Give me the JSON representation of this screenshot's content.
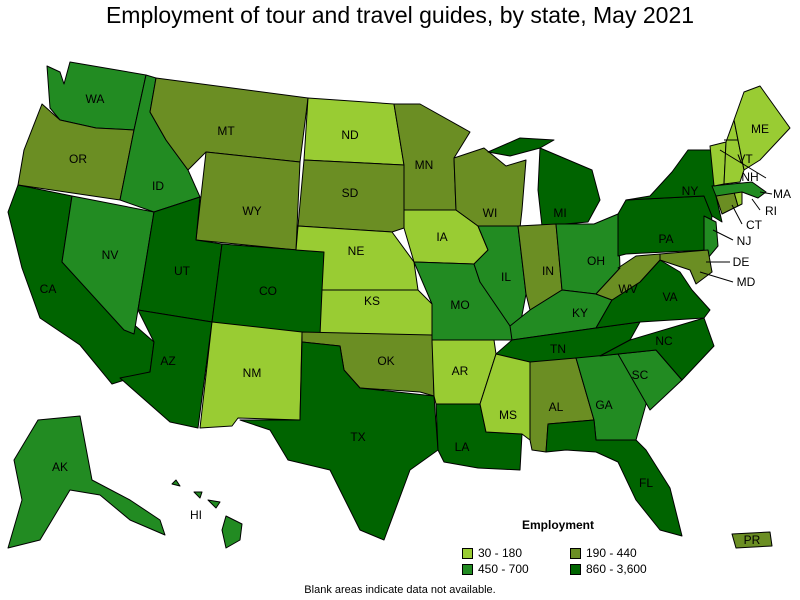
{
  "title": "Employment of tour and travel guides, by state, May 2021",
  "note": "Blank areas indicate data not available.",
  "legend": {
    "title": "Employment",
    "bins": [
      {
        "label": "30 - 180",
        "color": "#99cc33"
      },
      {
        "label": "190 - 440",
        "color": "#6b8e23"
      },
      {
        "label": "450 - 700",
        "color": "#228b22"
      },
      {
        "label": "860 - 3,600",
        "color": "#006400"
      }
    ]
  },
  "states": [
    {
      "abbr": "WA",
      "bin": 2
    },
    {
      "abbr": "OR",
      "bin": 1
    },
    {
      "abbr": "CA",
      "bin": 3
    },
    {
      "abbr": "NV",
      "bin": 2
    },
    {
      "abbr": "ID",
      "bin": 2
    },
    {
      "abbr": "MT",
      "bin": 1
    },
    {
      "abbr": "WY",
      "bin": 1
    },
    {
      "abbr": "UT",
      "bin": 3
    },
    {
      "abbr": "AZ",
      "bin": 3
    },
    {
      "abbr": "CO",
      "bin": 3
    },
    {
      "abbr": "NM",
      "bin": 0
    },
    {
      "abbr": "ND",
      "bin": 0
    },
    {
      "abbr": "SD",
      "bin": 1
    },
    {
      "abbr": "NE",
      "bin": 0
    },
    {
      "abbr": "KS",
      "bin": 0
    },
    {
      "abbr": "OK",
      "bin": 1
    },
    {
      "abbr": "TX",
      "bin": 3
    },
    {
      "abbr": "MN",
      "bin": 1
    },
    {
      "abbr": "IA",
      "bin": 0
    },
    {
      "abbr": "MO",
      "bin": 2
    },
    {
      "abbr": "AR",
      "bin": 0
    },
    {
      "abbr": "LA",
      "bin": 3
    },
    {
      "abbr": "WI",
      "bin": 1
    },
    {
      "abbr": "IL",
      "bin": 2
    },
    {
      "abbr": "MI",
      "bin": 3
    },
    {
      "abbr": "IN",
      "bin": 1
    },
    {
      "abbr": "OH",
      "bin": 2
    },
    {
      "abbr": "KY",
      "bin": 2
    },
    {
      "abbr": "TN",
      "bin": 3
    },
    {
      "abbr": "MS",
      "bin": 0
    },
    {
      "abbr": "AL",
      "bin": 1
    },
    {
      "abbr": "GA",
      "bin": 2
    },
    {
      "abbr": "FL",
      "bin": 3
    },
    {
      "abbr": "SC",
      "bin": 2
    },
    {
      "abbr": "NC",
      "bin": 3
    },
    {
      "abbr": "VA",
      "bin": 3
    },
    {
      "abbr": "WV",
      "bin": 1
    },
    {
      "abbr": "PA",
      "bin": 3
    },
    {
      "abbr": "NY",
      "bin": 3
    },
    {
      "abbr": "NJ",
      "bin": 2
    },
    {
      "abbr": "DE",
      "bin": 1
    },
    {
      "abbr": "MD",
      "bin": 1
    },
    {
      "abbr": "CT",
      "bin": 1
    },
    {
      "abbr": "RI",
      "bin": 0
    },
    {
      "abbr": "MA",
      "bin": 2
    },
    {
      "abbr": "VT",
      "bin": 0
    },
    {
      "abbr": "NH",
      "bin": 0
    },
    {
      "abbr": "ME",
      "bin": 0
    },
    {
      "abbr": "AK",
      "bin": 2
    },
    {
      "abbr": "HI",
      "bin": 2
    },
    {
      "abbr": "PR",
      "bin": 1
    }
  ]
}
